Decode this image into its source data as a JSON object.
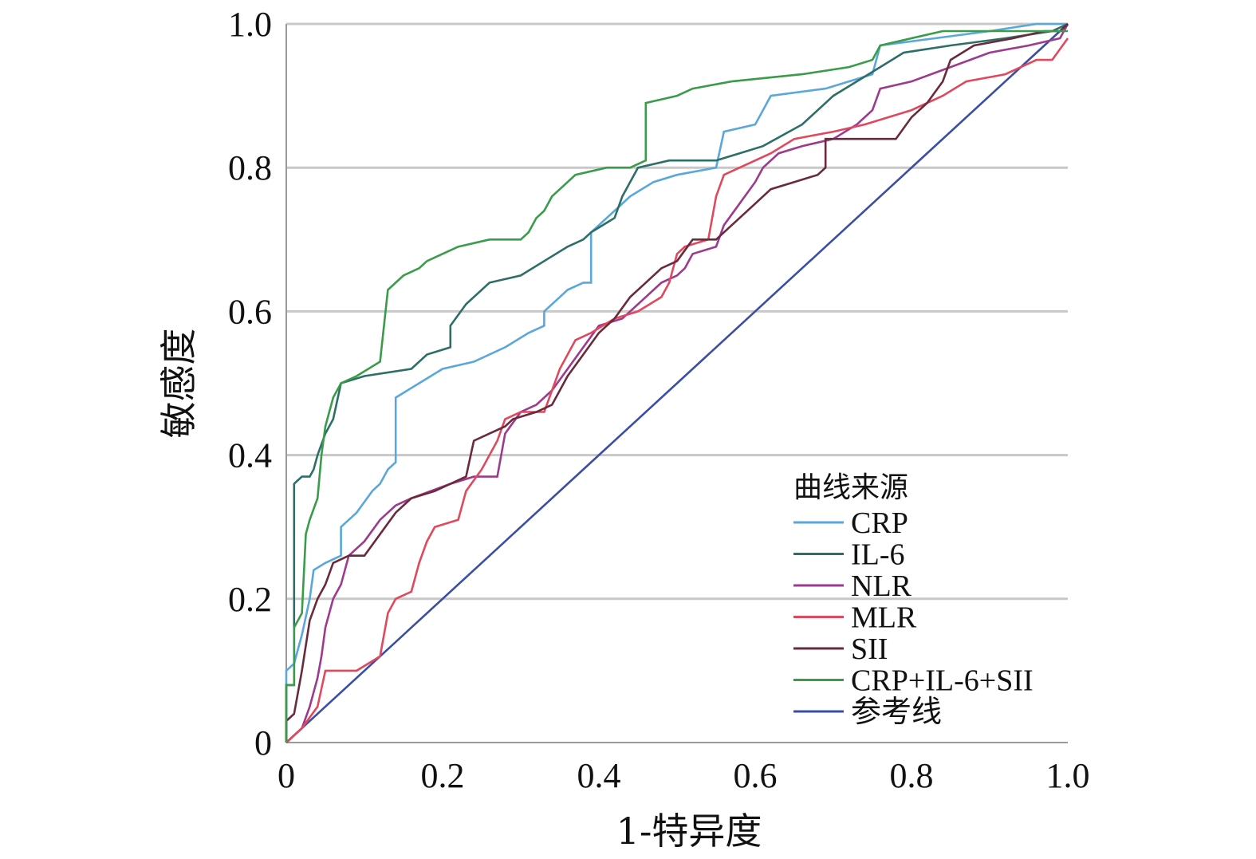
{
  "chart_data": {
    "type": "line",
    "title": "",
    "xlabel": "1-特异度",
    "ylabel": "敏感度",
    "xlim": [
      0,
      1
    ],
    "ylim": [
      0,
      1
    ],
    "x_ticks": [
      "0",
      "0.2",
      "0.4",
      "0.6",
      "0.8",
      "1.0"
    ],
    "y_ticks": [
      "0",
      "0.2",
      "0.4",
      "0.6",
      "0.8",
      "1.0"
    ],
    "grid": "horizontal",
    "legend_position": "bottom-right",
    "legend_title": "曲线来源",
    "series": [
      {
        "name": "CRP",
        "color": "#5aa7db",
        "points": [
          [
            0,
            0
          ],
          [
            0,
            0.1
          ],
          [
            0.01,
            0.11
          ],
          [
            0.02,
            0.15
          ],
          [
            0.03,
            0.2
          ],
          [
            0.035,
            0.24
          ],
          [
            0.05,
            0.25
          ],
          [
            0.07,
            0.26
          ],
          [
            0.07,
            0.3
          ],
          [
            0.09,
            0.32
          ],
          [
            0.11,
            0.35
          ],
          [
            0.12,
            0.36
          ],
          [
            0.13,
            0.38
          ],
          [
            0.14,
            0.39
          ],
          [
            0.14,
            0.48
          ],
          [
            0.17,
            0.5
          ],
          [
            0.2,
            0.52
          ],
          [
            0.24,
            0.53
          ],
          [
            0.28,
            0.55
          ],
          [
            0.31,
            0.57
          ],
          [
            0.33,
            0.58
          ],
          [
            0.33,
            0.6
          ],
          [
            0.35,
            0.62
          ],
          [
            0.36,
            0.63
          ],
          [
            0.38,
            0.64
          ],
          [
            0.39,
            0.64
          ],
          [
            0.39,
            0.71
          ],
          [
            0.42,
            0.74
          ],
          [
            0.44,
            0.76
          ],
          [
            0.47,
            0.78
          ],
          [
            0.5,
            0.79
          ],
          [
            0.55,
            0.8
          ],
          [
            0.56,
            0.85
          ],
          [
            0.6,
            0.86
          ],
          [
            0.61,
            0.88
          ],
          [
            0.62,
            0.9
          ],
          [
            0.69,
            0.91
          ],
          [
            0.72,
            0.92
          ],
          [
            0.75,
            0.93
          ],
          [
            0.76,
            0.97
          ],
          [
            0.83,
            0.98
          ],
          [
            0.9,
            0.99
          ],
          [
            0.96,
            1.0
          ],
          [
            1,
            1
          ]
        ]
      },
      {
        "name": "IL-6",
        "color": "#2e6e68",
        "points": [
          [
            0,
            0
          ],
          [
            0,
            0.08
          ],
          [
            0.01,
            0.08
          ],
          [
            0.01,
            0.36
          ],
          [
            0.02,
            0.37
          ],
          [
            0.03,
            0.37
          ],
          [
            0.035,
            0.38
          ],
          [
            0.04,
            0.4
          ],
          [
            0.05,
            0.43
          ],
          [
            0.06,
            0.45
          ],
          [
            0.07,
            0.5
          ],
          [
            0.1,
            0.51
          ],
          [
            0.16,
            0.52
          ],
          [
            0.18,
            0.54
          ],
          [
            0.21,
            0.55
          ],
          [
            0.21,
            0.58
          ],
          [
            0.23,
            0.61
          ],
          [
            0.26,
            0.64
          ],
          [
            0.3,
            0.65
          ],
          [
            0.33,
            0.67
          ],
          [
            0.36,
            0.69
          ],
          [
            0.38,
            0.7
          ],
          [
            0.39,
            0.71
          ],
          [
            0.42,
            0.73
          ],
          [
            0.43,
            0.76
          ],
          [
            0.44,
            0.78
          ],
          [
            0.45,
            0.8
          ],
          [
            0.49,
            0.81
          ],
          [
            0.55,
            0.81
          ],
          [
            0.58,
            0.82
          ],
          [
            0.61,
            0.83
          ],
          [
            0.66,
            0.86
          ],
          [
            0.7,
            0.9
          ],
          [
            0.73,
            0.92
          ],
          [
            0.76,
            0.94
          ],
          [
            0.79,
            0.96
          ],
          [
            0.85,
            0.97
          ],
          [
            0.92,
            0.98
          ],
          [
            0.98,
            0.99
          ],
          [
            1,
            1
          ]
        ]
      },
      {
        "name": "NLR",
        "color": "#9d3a8e",
        "points": [
          [
            0,
            0
          ],
          [
            0.01,
            0.01
          ],
          [
            0.02,
            0.02
          ],
          [
            0.03,
            0.05
          ],
          [
            0.04,
            0.09
          ],
          [
            0.045,
            0.12
          ],
          [
            0.05,
            0.16
          ],
          [
            0.06,
            0.2
          ],
          [
            0.07,
            0.22
          ],
          [
            0.08,
            0.26
          ],
          [
            0.1,
            0.28
          ],
          [
            0.12,
            0.31
          ],
          [
            0.14,
            0.33
          ],
          [
            0.16,
            0.34
          ],
          [
            0.21,
            0.36
          ],
          [
            0.24,
            0.37
          ],
          [
            0.27,
            0.37
          ],
          [
            0.28,
            0.43
          ],
          [
            0.3,
            0.46
          ],
          [
            0.32,
            0.47
          ],
          [
            0.34,
            0.49
          ],
          [
            0.36,
            0.52
          ],
          [
            0.38,
            0.55
          ],
          [
            0.4,
            0.58
          ],
          [
            0.43,
            0.59
          ],
          [
            0.46,
            0.62
          ],
          [
            0.48,
            0.64
          ],
          [
            0.5,
            0.65
          ],
          [
            0.51,
            0.66
          ],
          [
            0.52,
            0.68
          ],
          [
            0.55,
            0.69
          ],
          [
            0.56,
            0.72
          ],
          [
            0.58,
            0.75
          ],
          [
            0.6,
            0.78
          ],
          [
            0.61,
            0.8
          ],
          [
            0.63,
            0.82
          ],
          [
            0.66,
            0.83
          ],
          [
            0.7,
            0.84
          ],
          [
            0.73,
            0.86
          ],
          [
            0.75,
            0.88
          ],
          [
            0.76,
            0.91
          ],
          [
            0.8,
            0.92
          ],
          [
            0.85,
            0.94
          ],
          [
            0.9,
            0.96
          ],
          [
            0.95,
            0.97
          ],
          [
            0.99,
            0.98
          ],
          [
            1,
            1
          ]
        ]
      },
      {
        "name": "MLR",
        "color": "#e0485e",
        "points": [
          [
            0,
            0
          ],
          [
            0.02,
            0.02
          ],
          [
            0.04,
            0.05
          ],
          [
            0.05,
            0.1
          ],
          [
            0.09,
            0.1
          ],
          [
            0.12,
            0.12
          ],
          [
            0.13,
            0.18
          ],
          [
            0.14,
            0.2
          ],
          [
            0.16,
            0.21
          ],
          [
            0.17,
            0.25
          ],
          [
            0.18,
            0.28
          ],
          [
            0.19,
            0.3
          ],
          [
            0.22,
            0.31
          ],
          [
            0.23,
            0.35
          ],
          [
            0.25,
            0.38
          ],
          [
            0.27,
            0.42
          ],
          [
            0.28,
            0.45
          ],
          [
            0.3,
            0.46
          ],
          [
            0.33,
            0.46
          ],
          [
            0.35,
            0.52
          ],
          [
            0.37,
            0.56
          ],
          [
            0.39,
            0.57
          ],
          [
            0.42,
            0.59
          ],
          [
            0.45,
            0.6
          ],
          [
            0.48,
            0.62
          ],
          [
            0.49,
            0.64
          ],
          [
            0.5,
            0.68
          ],
          [
            0.51,
            0.69
          ],
          [
            0.54,
            0.7
          ],
          [
            0.55,
            0.76
          ],
          [
            0.56,
            0.79
          ],
          [
            0.58,
            0.8
          ],
          [
            0.62,
            0.82
          ],
          [
            0.65,
            0.84
          ],
          [
            0.7,
            0.85
          ],
          [
            0.74,
            0.86
          ],
          [
            0.77,
            0.87
          ],
          [
            0.8,
            0.88
          ],
          [
            0.84,
            0.9
          ],
          [
            0.87,
            0.92
          ],
          [
            0.92,
            0.93
          ],
          [
            0.96,
            0.95
          ],
          [
            0.98,
            0.95
          ],
          [
            1,
            0.98
          ]
        ]
      },
      {
        "name": "SII",
        "color": "#6b2a3c",
        "points": [
          [
            0,
            0
          ],
          [
            0,
            0.03
          ],
          [
            0.01,
            0.04
          ],
          [
            0.02,
            0.1
          ],
          [
            0.03,
            0.17
          ],
          [
            0.04,
            0.2
          ],
          [
            0.05,
            0.22
          ],
          [
            0.06,
            0.25
          ],
          [
            0.08,
            0.26
          ],
          [
            0.1,
            0.26
          ],
          [
            0.14,
            0.32
          ],
          [
            0.16,
            0.34
          ],
          [
            0.19,
            0.35
          ],
          [
            0.23,
            0.37
          ],
          [
            0.24,
            0.42
          ],
          [
            0.26,
            0.43
          ],
          [
            0.28,
            0.44
          ],
          [
            0.29,
            0.45
          ],
          [
            0.32,
            0.46
          ],
          [
            0.34,
            0.47
          ],
          [
            0.36,
            0.51
          ],
          [
            0.38,
            0.54
          ],
          [
            0.4,
            0.57
          ],
          [
            0.42,
            0.59
          ],
          [
            0.44,
            0.62
          ],
          [
            0.46,
            0.64
          ],
          [
            0.48,
            0.66
          ],
          [
            0.5,
            0.67
          ],
          [
            0.52,
            0.7
          ],
          [
            0.55,
            0.7
          ],
          [
            0.57,
            0.72
          ],
          [
            0.6,
            0.75
          ],
          [
            0.62,
            0.77
          ],
          [
            0.65,
            0.78
          ],
          [
            0.68,
            0.79
          ],
          [
            0.69,
            0.8
          ],
          [
            0.69,
            0.84
          ],
          [
            0.73,
            0.84
          ],
          [
            0.78,
            0.84
          ],
          [
            0.8,
            0.87
          ],
          [
            0.82,
            0.89
          ],
          [
            0.84,
            0.92
          ],
          [
            0.85,
            0.95
          ],
          [
            0.88,
            0.97
          ],
          [
            0.93,
            0.98
          ],
          [
            0.97,
            0.99
          ],
          [
            0.99,
            0.99
          ],
          [
            1,
            1
          ]
        ]
      },
      {
        "name": "CRP+IL-6+SII",
        "color": "#3a9c4a",
        "points": [
          [
            0,
            0
          ],
          [
            0,
            0.08
          ],
          [
            0.01,
            0.08
          ],
          [
            0.01,
            0.16
          ],
          [
            0.02,
            0.18
          ],
          [
            0.025,
            0.29
          ],
          [
            0.03,
            0.31
          ],
          [
            0.04,
            0.34
          ],
          [
            0.045,
            0.4
          ],
          [
            0.05,
            0.44
          ],
          [
            0.06,
            0.48
          ],
          [
            0.07,
            0.5
          ],
          [
            0.09,
            0.51
          ],
          [
            0.12,
            0.53
          ],
          [
            0.13,
            0.63
          ],
          [
            0.15,
            0.65
          ],
          [
            0.17,
            0.66
          ],
          [
            0.18,
            0.67
          ],
          [
            0.2,
            0.68
          ],
          [
            0.22,
            0.69
          ],
          [
            0.26,
            0.7
          ],
          [
            0.3,
            0.7
          ],
          [
            0.31,
            0.71
          ],
          [
            0.32,
            0.73
          ],
          [
            0.33,
            0.74
          ],
          [
            0.34,
            0.76
          ],
          [
            0.35,
            0.77
          ],
          [
            0.37,
            0.79
          ],
          [
            0.41,
            0.8
          ],
          [
            0.44,
            0.8
          ],
          [
            0.46,
            0.81
          ],
          [
            0.46,
            0.89
          ],
          [
            0.5,
            0.9
          ],
          [
            0.52,
            0.91
          ],
          [
            0.57,
            0.92
          ],
          [
            0.66,
            0.93
          ],
          [
            0.72,
            0.94
          ],
          [
            0.75,
            0.95
          ],
          [
            0.76,
            0.97
          ],
          [
            0.8,
            0.98
          ],
          [
            0.84,
            0.99
          ],
          [
            0.9,
            0.99
          ],
          [
            0.96,
            0.99
          ],
          [
            1,
            0.99
          ]
        ]
      },
      {
        "name": "参考线",
        "color": "#3a4fa3",
        "points": [
          [
            0,
            0
          ],
          [
            1,
            1
          ]
        ]
      }
    ]
  }
}
